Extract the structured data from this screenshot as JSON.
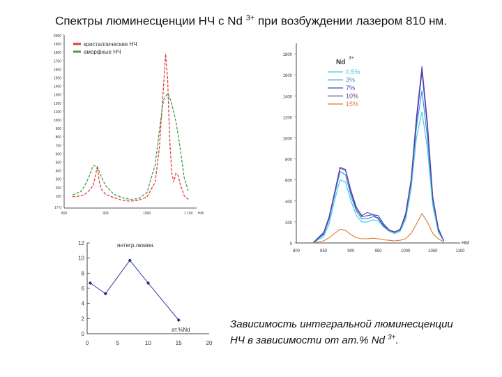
{
  "slide": {
    "title_main": "Спектры люминесценции НЧ с Nd",
    "title_sup": "3+",
    "title_rest": " при возбуждении лазером 810 нм.",
    "caption_line1": "Зависимость интегральной люминесценции",
    "caption_line2": "НЧ в зависимости от ат.% Nd",
    "caption_sup": "3+",
    "caption_end": "."
  },
  "chart_data": [
    {
      "type": "line",
      "xlim": [
        800,
        1120
      ],
      "ylim": [
        0,
        2000
      ],
      "x_ticks": [
        "800",
        "900",
        "1000",
        "1 100"
      ],
      "x_unit": "НМ",
      "y_ticks": [
        "2000",
        "1900",
        "1800",
        "1700",
        "1600",
        "1500",
        "1400",
        "1300",
        "1200",
        "1100",
        "1000",
        "900",
        "800",
        "700",
        "600",
        "500",
        "400",
        "300",
        "200",
        "100"
      ],
      "y_tick_bottom": "1? 0",
      "legend_position": "top-left",
      "series": [
        {
          "name": "кристаллические НЧ",
          "color": "#e23a3a",
          "x": [
            820,
            840,
            850,
            860,
            870,
            875,
            880,
            885,
            890,
            900,
            920,
            940,
            960,
            980,
            1000,
            1020,
            1030,
            1040,
            1045,
            1050,
            1055,
            1060,
            1065,
            1070,
            1075,
            1080,
            1090,
            1100
          ],
          "y": [
            130,
            140,
            160,
            200,
            260,
            360,
            480,
            300,
            220,
            160,
            120,
            90,
            80,
            90,
            130,
            300,
            700,
            1400,
            1780,
            1500,
            800,
            400,
            300,
            400,
            380,
            280,
            140,
            100
          ]
        },
        {
          "name": "аморфные НЧ",
          "color": "#3aa04a",
          "x": [
            820,
            840,
            850,
            860,
            870,
            880,
            890,
            900,
            920,
            940,
            960,
            980,
            1000,
            1020,
            1030,
            1040,
            1050,
            1055,
            1060,
            1070,
            1080,
            1090,
            1100
          ],
          "y": [
            150,
            190,
            260,
            360,
            490,
            480,
            360,
            260,
            160,
            120,
            100,
            110,
            180,
            500,
            900,
            1250,
            1320,
            1280,
            1200,
            1000,
            700,
            350,
            200
          ]
        }
      ]
    },
    {
      "type": "line",
      "xlim": [
        800,
        1100
      ],
      "ylim": [
        0,
        1900
      ],
      "x_ticks": [
        "800",
        "850",
        "900",
        "950",
        "1000",
        "1050",
        "1100"
      ],
      "x_unit": "НМ",
      "y_ticks": [
        "0",
        "200",
        "400",
        "600",
        "800",
        "1000",
        "1200",
        "1400",
        "1600",
        "1800"
      ],
      "legend_title": "Nd",
      "legend_title_sup": "3+",
      "legend_position": "top-left",
      "series": [
        {
          "name": "0.5%",
          "color": "#40c8e0",
          "x": [
            830,
            850,
            860,
            870,
            880,
            890,
            900,
            910,
            920,
            930,
            940,
            950,
            960,
            970,
            980,
            990,
            1000,
            1010,
            1020,
            1030,
            1040,
            1050,
            1060,
            1070
          ],
          "y": [
            0,
            60,
            180,
            400,
            600,
            580,
            400,
            260,
            200,
            200,
            220,
            210,
            150,
            110,
            90,
            110,
            220,
            500,
            1000,
            1250,
            900,
            350,
            100,
            20
          ]
        },
        {
          "name": "3%",
          "color": "#2890d8",
          "x": [
            830,
            850,
            860,
            870,
            880,
            890,
            900,
            910,
            920,
            930,
            940,
            950,
            960,
            970,
            980,
            990,
            1000,
            1010,
            1020,
            1030,
            1040,
            1050,
            1060,
            1070
          ],
          "y": [
            0,
            80,
            220,
            450,
            680,
            650,
            450,
            300,
            230,
            230,
            250,
            240,
            170,
            120,
            100,
            120,
            250,
            560,
            1100,
            1450,
            1000,
            400,
            120,
            20
          ]
        },
        {
          "name": "7%",
          "color": "#3050c0",
          "x": [
            830,
            850,
            860,
            870,
            880,
            890,
            900,
            910,
            920,
            930,
            940,
            950,
            960,
            970,
            980,
            990,
            1000,
            1010,
            1020,
            1030,
            1040,
            1050,
            1060,
            1070
          ],
          "y": [
            0,
            90,
            240,
            470,
            710,
            690,
            480,
            320,
            250,
            260,
            270,
            260,
            180,
            125,
            105,
            130,
            260,
            580,
            1150,
            1630,
            1100,
            420,
            130,
            20
          ]
        },
        {
          "name": "10%",
          "color": "#6a3aa0",
          "x": [
            830,
            850,
            860,
            870,
            880,
            890,
            900,
            910,
            920,
            930,
            940,
            950,
            960,
            970,
            980,
            990,
            1000,
            1010,
            1020,
            1030,
            1040,
            1050,
            1060,
            1070
          ],
          "y": [
            0,
            100,
            250,
            480,
            720,
            700,
            500,
            340,
            260,
            290,
            270,
            230,
            160,
            120,
            100,
            130,
            280,
            600,
            1200,
            1680,
            1150,
            440,
            140,
            20
          ]
        },
        {
          "name": "15%",
          "color": "#e07830",
          "x": [
            830,
            850,
            860,
            870,
            880,
            890,
            900,
            910,
            920,
            930,
            940,
            950,
            960,
            970,
            980,
            990,
            1000,
            1010,
            1020,
            1030,
            1040,
            1050,
            1060,
            1070
          ],
          "y": [
            0,
            20,
            50,
            90,
            130,
            120,
            80,
            50,
            40,
            40,
            45,
            40,
            30,
            25,
            20,
            25,
            40,
            90,
            180,
            280,
            200,
            90,
            40,
            10
          ]
        }
      ]
    },
    {
      "type": "line",
      "xlim": [
        0,
        20
      ],
      "ylim": [
        0,
        12
      ],
      "x_ticks": [
        "0",
        "5",
        "10",
        "15",
        "20"
      ],
      "y_ticks": [
        "0",
        "2",
        "4",
        "6",
        "8",
        "10",
        "12"
      ],
      "ylabel": "интегр.люмин.",
      "xlabel": "ат.%Nd",
      "series": [
        {
          "color": "#2d3b98",
          "x": [
            0.5,
            3,
            7,
            10,
            15
          ],
          "y": [
            6.7,
            5.3,
            9.7,
            6.7,
            1.8
          ]
        }
      ]
    }
  ]
}
